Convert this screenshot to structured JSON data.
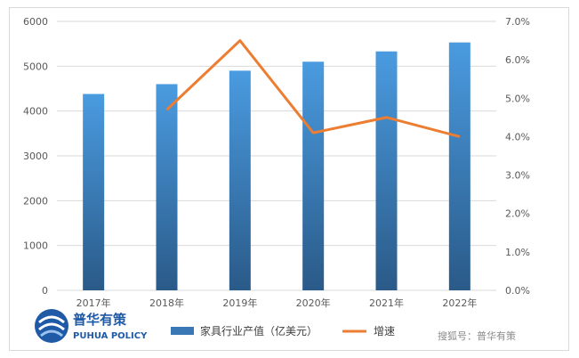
{
  "chart_data": {
    "type": "bar",
    "categories": [
      "2017年",
      "2018年",
      "2019年",
      "2020年",
      "2021年",
      "2022年"
    ],
    "series": [
      {
        "name": "家具行业产值（亿美元）",
        "kind": "bar",
        "axis": "left",
        "values": [
          4380,
          4600,
          4900,
          5100,
          5330,
          5530
        ],
        "color": "#3a78b5"
      },
      {
        "name": "增速",
        "kind": "line",
        "axis": "right",
        "values": [
          null,
          4.7,
          6.5,
          4.1,
          4.5,
          4.0
        ],
        "color": "#ed7d31"
      }
    ],
    "y_left": {
      "ylim": [
        0,
        6000
      ],
      "ticks": [
        "0",
        "1000",
        "2000",
        "3000",
        "4000",
        "5000",
        "6000"
      ]
    },
    "y_right": {
      "ylim": [
        0,
        7
      ],
      "ticks": [
        "0.0%",
        "1.0%",
        "2.0%",
        "3.0%",
        "4.0%",
        "5.0%",
        "6.0%",
        "7.0%"
      ]
    },
    "grid": true,
    "legend": "bottom"
  },
  "logo": {
    "cn": "普华有策",
    "en": "PUHUA POLICY"
  },
  "watermark": "搜狐号：普华有策"
}
